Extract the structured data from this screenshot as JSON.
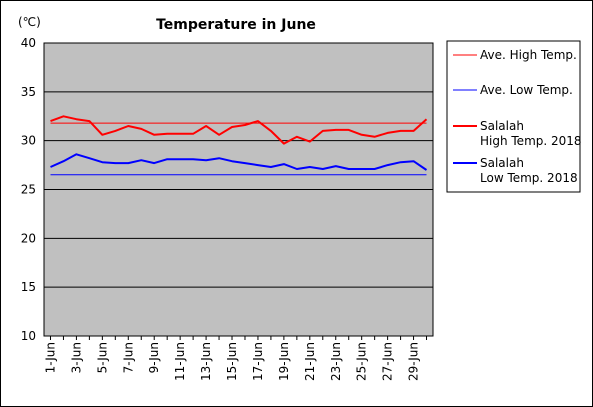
{
  "chart_data": {
    "type": "line",
    "title": "Temperature in June",
    "unit_label": "(℃)",
    "ylim": [
      10,
      40
    ],
    "yticks": [
      10,
      15,
      20,
      25,
      30,
      35,
      40
    ],
    "grid": true,
    "legend_position": "right",
    "x": [
      "1-Jun",
      "2-Jun",
      "3-Jun",
      "4-Jun",
      "5-Jun",
      "6-Jun",
      "7-Jun",
      "8-Jun",
      "9-Jun",
      "10-Jun",
      "11-Jun",
      "12-Jun",
      "13-Jun",
      "14-Jun",
      "15-Jun",
      "16-Jun",
      "17-Jun",
      "18-Jun",
      "19-Jun",
      "20-Jun",
      "21-Jun",
      "22-Jun",
      "23-Jun",
      "24-Jun",
      "25-Jun",
      "26-Jun",
      "27-Jun",
      "28-Jun",
      "29-Jun",
      "30-Jun"
    ],
    "xtick_labels": [
      "1-Jun",
      "3-Jun",
      "5-Jun",
      "7-Jun",
      "9-Jun",
      "11-Jun",
      "13-Jun",
      "15-Jun",
      "17-Jun",
      "19-Jun",
      "21-Jun",
      "23-Jun",
      "25-Jun",
      "27-Jun",
      "29-Jun"
    ],
    "series": [
      {
        "name": "Ave. High Temp.",
        "color": "#ff0000",
        "width": 1,
        "values": [
          31.8,
          31.8,
          31.8,
          31.8,
          31.8,
          31.8,
          31.8,
          31.8,
          31.8,
          31.8,
          31.8,
          31.8,
          31.8,
          31.8,
          31.8,
          31.8,
          31.8,
          31.8,
          31.8,
          31.8,
          31.8,
          31.8,
          31.8,
          31.8,
          31.8,
          31.8,
          31.8,
          31.8,
          31.8,
          31.8
        ]
      },
      {
        "name": "Ave. Low Temp.",
        "color": "#0000ff",
        "width": 1,
        "values": [
          26.5,
          26.5,
          26.5,
          26.5,
          26.5,
          26.5,
          26.5,
          26.5,
          26.5,
          26.5,
          26.5,
          26.5,
          26.5,
          26.5,
          26.5,
          26.5,
          26.5,
          26.5,
          26.5,
          26.5,
          26.5,
          26.5,
          26.5,
          26.5,
          26.5,
          26.5,
          26.5,
          26.5,
          26.5,
          26.5
        ]
      },
      {
        "name": "Salalah High Temp. 2018",
        "legend_lines": [
          "Salalah",
          "High Temp. 2018"
        ],
        "color": "#ff0000",
        "width": 2,
        "values": [
          32.0,
          32.5,
          32.2,
          32.0,
          30.6,
          31.0,
          31.5,
          31.2,
          30.6,
          30.7,
          30.7,
          30.7,
          31.5,
          30.6,
          31.4,
          31.6,
          32.0,
          31.0,
          29.7,
          30.4,
          29.9,
          31.0,
          31.1,
          31.1,
          30.6,
          30.4,
          30.8,
          31.0,
          31.0,
          32.2
        ]
      },
      {
        "name": "Salalah Low Temp. 2018",
        "legend_lines": [
          "Salalah",
          "Low Temp. 2018"
        ],
        "color": "#0000ff",
        "width": 2,
        "values": [
          27.3,
          27.9,
          28.6,
          28.2,
          27.8,
          27.7,
          27.7,
          28.0,
          27.7,
          28.1,
          28.1,
          28.1,
          28.0,
          28.2,
          27.9,
          27.7,
          27.5,
          27.3,
          27.6,
          27.1,
          27.3,
          27.1,
          27.4,
          27.1,
          27.1,
          27.1,
          27.5,
          27.8,
          27.9,
          27.0
        ]
      }
    ]
  }
}
